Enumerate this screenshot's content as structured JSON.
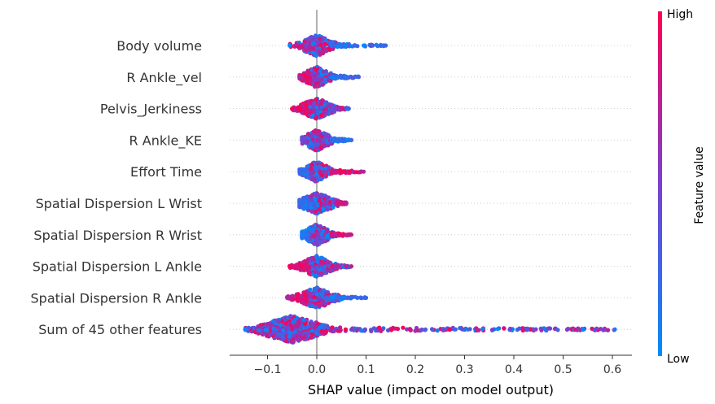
{
  "chart_data": {
    "type": "beeswarm",
    "xlabel": "SHAP value (impact on model output)",
    "xticks": [
      -0.1,
      0.0,
      0.1,
      0.2,
      0.3,
      0.4,
      0.5,
      0.6
    ],
    "xtick_labels": [
      "−0.1",
      "0.0",
      "0.1",
      "0.2",
      "0.3",
      "0.4",
      "0.5",
      "0.6"
    ],
    "xlim": [
      -0.18,
      0.64
    ],
    "colorbar": {
      "label": "Feature value",
      "high": "High",
      "low": "Low",
      "low_color": "#008bfb",
      "mid_color": "#7b3fd0",
      "high_color": "#ff0051"
    },
    "features": [
      {
        "name": "Body volume",
        "min": -0.055,
        "max": 0.14,
        "core": [
          -0.03,
          0.03
        ],
        "peak": 0.0,
        "tail_color": "low",
        "left_color": "mixed"
      },
      {
        "name": "R Ankle_vel",
        "min": -0.035,
        "max": 0.085,
        "core": [
          -0.02,
          0.03
        ],
        "peak": 0.0,
        "tail_color": "low",
        "left_color": "high"
      },
      {
        "name": "Pelvis_Jerkiness",
        "min": -0.05,
        "max": 0.065,
        "core": [
          -0.03,
          0.03
        ],
        "peak": 0.0,
        "tail_color": "mixed",
        "left_color": "high"
      },
      {
        "name": "R Ankle_KE",
        "min": -0.03,
        "max": 0.07,
        "core": [
          -0.02,
          0.03
        ],
        "peak": 0.0,
        "tail_color": "low",
        "left_color": "mixed"
      },
      {
        "name": "Effort Time",
        "min": -0.035,
        "max": 0.095,
        "core": [
          -0.02,
          0.03
        ],
        "peak": 0.0,
        "tail_color": "high",
        "left_color": "low"
      },
      {
        "name": "Spatial Dispersion L Wrist",
        "min": -0.035,
        "max": 0.06,
        "core": [
          -0.025,
          0.04
        ],
        "peak": 0.0,
        "tail_color": "high",
        "left_color": "low"
      },
      {
        "name": "Spatial Dispersion R Wrist",
        "min": -0.03,
        "max": 0.07,
        "core": [
          -0.02,
          0.03
        ],
        "peak": 0.0,
        "tail_color": "high",
        "left_color": "low"
      },
      {
        "name": "Spatial Dispersion L Ankle",
        "min": -0.055,
        "max": 0.07,
        "core": [
          -0.03,
          0.03
        ],
        "peak": 0.0,
        "tail_color": "mixed",
        "left_color": "high"
      },
      {
        "name": "Spatial Dispersion R Ankle",
        "min": -0.06,
        "max": 0.1,
        "core": [
          -0.05,
          0.02
        ],
        "peak": 0.0,
        "tail_color": "low",
        "left_color": "high"
      },
      {
        "name": "Sum of 45 other features",
        "min": -0.145,
        "max": 0.605,
        "core": [
          -0.1,
          0.01
        ],
        "peak": -0.05,
        "tail_color": "mixed",
        "left_color": "mixed"
      }
    ]
  }
}
